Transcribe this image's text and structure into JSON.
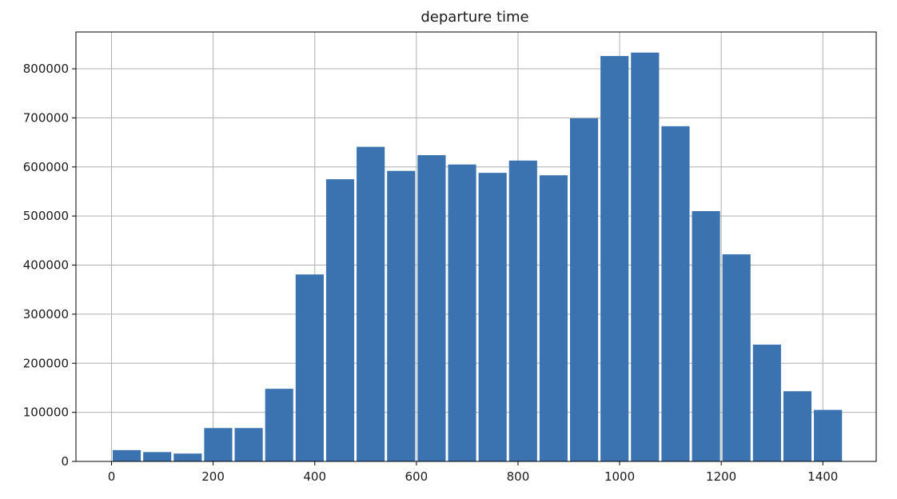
{
  "chart_data": {
    "type": "bar",
    "title": "departure time",
    "xlabel": "",
    "ylabel": "",
    "bins": [
      [
        0,
        60
      ],
      [
        60,
        120
      ],
      [
        120,
        180
      ],
      [
        180,
        240
      ],
      [
        240,
        300
      ],
      [
        300,
        360
      ],
      [
        360,
        420
      ],
      [
        420,
        480
      ],
      [
        480,
        540
      ],
      [
        540,
        600
      ],
      [
        600,
        660
      ],
      [
        660,
        720
      ],
      [
        720,
        780
      ],
      [
        780,
        840
      ],
      [
        840,
        900
      ],
      [
        900,
        960
      ],
      [
        960,
        1020
      ],
      [
        1020,
        1080
      ],
      [
        1080,
        1140
      ],
      [
        1140,
        1200
      ],
      [
        1200,
        1260
      ],
      [
        1260,
        1320
      ],
      [
        1320,
        1380
      ],
      [
        1380,
        1440
      ]
    ],
    "values": [
      23000,
      19000,
      16000,
      68000,
      68000,
      148000,
      381000,
      575000,
      641000,
      592000,
      624000,
      605000,
      588000,
      613000,
      583000,
      699000,
      826000,
      833000,
      683000,
      510000,
      422000,
      238000,
      143000,
      105000
    ],
    "xlim": [
      -70,
      1505
    ],
    "ylim": [
      0,
      875000
    ],
    "xticks": [
      0,
      200,
      400,
      600,
      800,
      1000,
      1200,
      1400
    ],
    "xtick_labels": [
      "0",
      "200",
      "400",
      "600",
      "800",
      "1000",
      "1200",
      "1400"
    ],
    "yticks": [
      0,
      100000,
      200000,
      300000,
      400000,
      500000,
      600000,
      700000,
      800000
    ],
    "ytick_labels": [
      "0",
      "100000",
      "200000",
      "300000",
      "400000",
      "500000",
      "600000",
      "700000",
      "800000"
    ],
    "grid": true,
    "bar_color": "#3a73b0",
    "grid_color": "#b0b0b0"
  }
}
